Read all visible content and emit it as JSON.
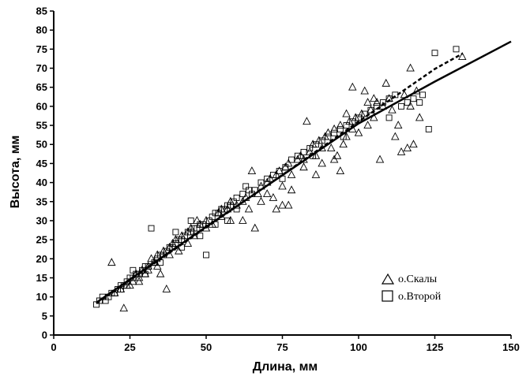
{
  "chart_data": {
    "type": "scatter",
    "xlabel": "Длина, мм",
    "ylabel": "Высота, мм",
    "xlim": [
      0,
      150
    ],
    "ylim": [
      0,
      85
    ],
    "xticks": [
      "0",
      "25",
      "50",
      "75",
      "100",
      "125",
      "150"
    ],
    "yticks": [
      "0",
      "5",
      "10",
      "15",
      "20",
      "25",
      "30",
      "35",
      "40",
      "45",
      "50",
      "55",
      "60",
      "65",
      "70",
      "75",
      "80",
      "85"
    ],
    "grid": false,
    "legend_position": "right",
    "series": [
      {
        "name": "о.Скалы",
        "marker": "triangle",
        "points": [
          [
            19,
            19
          ],
          [
            20,
            11
          ],
          [
            22,
            12
          ],
          [
            23,
            7
          ],
          [
            24,
            13
          ],
          [
            26,
            14
          ],
          [
            27,
            16
          ],
          [
            28,
            15
          ],
          [
            29,
            17
          ],
          [
            30,
            16
          ],
          [
            31,
            18
          ],
          [
            32,
            20
          ],
          [
            33,
            19
          ],
          [
            34,
            21
          ],
          [
            35,
            16
          ],
          [
            36,
            22
          ],
          [
            37,
            12
          ],
          [
            38,
            23
          ],
          [
            39,
            24
          ],
          [
            40,
            25
          ],
          [
            42,
            26
          ],
          [
            44,
            27
          ],
          [
            45,
            28
          ],
          [
            46,
            26
          ],
          [
            48,
            29
          ],
          [
            50,
            30
          ],
          [
            52,
            29
          ],
          [
            54,
            32
          ],
          [
            55,
            31
          ],
          [
            57,
            33
          ],
          [
            58,
            30
          ],
          [
            60,
            34
          ],
          [
            62,
            35
          ],
          [
            63,
            36
          ],
          [
            64,
            33
          ],
          [
            65,
            43
          ],
          [
            66,
            28
          ],
          [
            67,
            37
          ],
          [
            68,
            39
          ],
          [
            70,
            40
          ],
          [
            71,
            41
          ],
          [
            72,
            36
          ],
          [
            73,
            42
          ],
          [
            74,
            43
          ],
          [
            75,
            34
          ],
          [
            76,
            44
          ],
          [
            77,
            45
          ],
          [
            78,
            38
          ],
          [
            80,
            46
          ],
          [
            81,
            47
          ],
          [
            82,
            44
          ],
          [
            83,
            56
          ],
          [
            84,
            48
          ],
          [
            85,
            50
          ],
          [
            86,
            47
          ],
          [
            87,
            51
          ],
          [
            88,
            45
          ],
          [
            89,
            52
          ],
          [
            90,
            53
          ],
          [
            91,
            49
          ],
          [
            92,
            54
          ],
          [
            93,
            47
          ],
          [
            94,
            55
          ],
          [
            95,
            50
          ],
          [
            96,
            52
          ],
          [
            97,
            56
          ],
          [
            98,
            54
          ],
          [
            99,
            57
          ],
          [
            100,
            53
          ],
          [
            101,
            58
          ],
          [
            102,
            64
          ],
          [
            103,
            55
          ],
          [
            104,
            59
          ],
          [
            105,
            57
          ],
          [
            106,
            61
          ],
          [
            107,
            46
          ],
          [
            108,
            60
          ],
          [
            109,
            66
          ],
          [
            110,
            62
          ],
          [
            111,
            59
          ],
          [
            112,
            52
          ],
          [
            113,
            55
          ],
          [
            115,
            63
          ],
          [
            116,
            49
          ],
          [
            117,
            70
          ],
          [
            118,
            50
          ],
          [
            119,
            64
          ],
          [
            120,
            57
          ],
          [
            105,
            62
          ],
          [
            98,
            65
          ],
          [
            88,
            49
          ],
          [
            82,
            46
          ],
          [
            78,
            42
          ],
          [
            75,
            39
          ],
          [
            70,
            37
          ],
          [
            68,
            35
          ],
          [
            62,
            30
          ],
          [
            58,
            35
          ],
          [
            55,
            33
          ],
          [
            50,
            28
          ],
          [
            47,
            30
          ],
          [
            44,
            24
          ],
          [
            41,
            22
          ],
          [
            38,
            21
          ],
          [
            34,
            18
          ],
          [
            31,
            17
          ],
          [
            28,
            14
          ],
          [
            25,
            13
          ],
          [
            134,
            73
          ],
          [
            86,
            42
          ],
          [
            94,
            43
          ],
          [
            92,
            46
          ],
          [
            77,
            34
          ],
          [
            73,
            33
          ],
          [
            96,
            58
          ],
          [
            103,
            61
          ],
          [
            114,
            48
          ],
          [
            117,
            60
          ]
        ]
      },
      {
        "name": "о.Второй",
        "marker": "square",
        "points": [
          [
            14,
            8
          ],
          [
            15,
            9
          ],
          [
            16,
            10
          ],
          [
            18,
            10
          ],
          [
            19,
            11
          ],
          [
            20,
            11
          ],
          [
            21,
            12
          ],
          [
            22,
            13
          ],
          [
            23,
            13
          ],
          [
            24,
            14
          ],
          [
            25,
            15
          ],
          [
            26,
            15
          ],
          [
            27,
            16
          ],
          [
            28,
            16
          ],
          [
            29,
            17
          ],
          [
            30,
            18
          ],
          [
            31,
            18
          ],
          [
            32,
            28
          ],
          [
            33,
            19
          ],
          [
            34,
            20
          ],
          [
            35,
            21
          ],
          [
            36,
            21
          ],
          [
            37,
            22
          ],
          [
            38,
            23
          ],
          [
            39,
            23
          ],
          [
            40,
            24
          ],
          [
            41,
            25
          ],
          [
            42,
            25
          ],
          [
            43,
            26
          ],
          [
            44,
            27
          ],
          [
            45,
            27
          ],
          [
            46,
            28
          ],
          [
            47,
            28
          ],
          [
            48,
            29
          ],
          [
            49,
            29
          ],
          [
            50,
            21
          ],
          [
            51,
            30
          ],
          [
            52,
            31
          ],
          [
            53,
            32
          ],
          [
            54,
            32
          ],
          [
            55,
            33
          ],
          [
            56,
            33
          ],
          [
            57,
            34
          ],
          [
            58,
            34
          ],
          [
            59,
            35
          ],
          [
            60,
            36
          ],
          [
            62,
            37
          ],
          [
            64,
            38
          ],
          [
            66,
            38
          ],
          [
            68,
            40
          ],
          [
            70,
            41
          ],
          [
            72,
            42
          ],
          [
            74,
            43
          ],
          [
            76,
            44
          ],
          [
            78,
            46
          ],
          [
            80,
            47
          ],
          [
            82,
            48
          ],
          [
            84,
            49
          ],
          [
            86,
            50
          ],
          [
            88,
            51
          ],
          [
            90,
            52
          ],
          [
            92,
            53
          ],
          [
            94,
            54
          ],
          [
            96,
            55
          ],
          [
            98,
            56
          ],
          [
            100,
            57
          ],
          [
            102,
            58
          ],
          [
            104,
            59
          ],
          [
            106,
            60
          ],
          [
            108,
            61
          ],
          [
            110,
            62
          ],
          [
            112,
            63
          ],
          [
            114,
            60
          ],
          [
            116,
            61
          ],
          [
            118,
            62
          ],
          [
            120,
            61
          ],
          [
            121,
            63
          ],
          [
            123,
            54
          ],
          [
            125,
            74
          ],
          [
            132,
            75
          ],
          [
            110,
            57
          ],
          [
            95,
            52
          ],
          [
            85,
            47
          ],
          [
            75,
            41
          ],
          [
            65,
            37
          ],
          [
            63,
            39
          ],
          [
            57,
            30
          ],
          [
            45,
            30
          ],
          [
            40,
            27
          ],
          [
            35,
            19
          ],
          [
            30,
            16
          ],
          [
            26,
            17
          ],
          [
            22,
            12
          ],
          [
            17,
            9
          ],
          [
            60,
            33
          ],
          [
            53,
            29
          ],
          [
            48,
            26
          ],
          [
            42,
            23
          ]
        ]
      }
    ],
    "fit_lines": [
      {
        "style": "solid",
        "points": [
          [
            14,
            8.5
          ],
          [
            25,
            14.6
          ],
          [
            50,
            28.4
          ],
          [
            75,
            41.9
          ],
          [
            100,
            55.5
          ],
          [
            125,
            66.5
          ],
          [
            150,
            77
          ]
        ]
      },
      {
        "style": "dashed",
        "points": [
          [
            14,
            8.3
          ],
          [
            25,
            14.4
          ],
          [
            50,
            28.2
          ],
          [
            75,
            42.0
          ],
          [
            100,
            56.0
          ],
          [
            125,
            69.8
          ],
          [
            134,
            73.8
          ]
        ]
      }
    ]
  }
}
